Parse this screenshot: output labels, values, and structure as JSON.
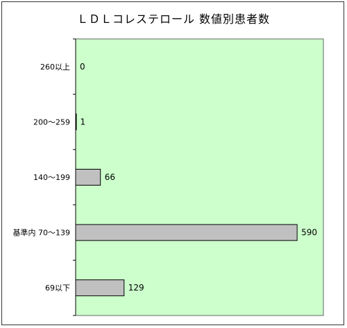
{
  "chart_data": {
    "type": "bar",
    "orientation": "horizontal",
    "title": "ＬＤＬコレステロール 数値別患者数",
    "categories": [
      "260以上",
      "200～259",
      "140～199",
      "基準内 70～139",
      "69以下"
    ],
    "values": [
      0,
      1,
      66,
      590,
      129
    ],
    "xlim": [
      0,
      660
    ],
    "grid": false,
    "legend": "none",
    "colors": {
      "plot_background": "#ccffcc",
      "bar_fill": "#c0c0c0",
      "bar_stroke": "#000000"
    }
  }
}
